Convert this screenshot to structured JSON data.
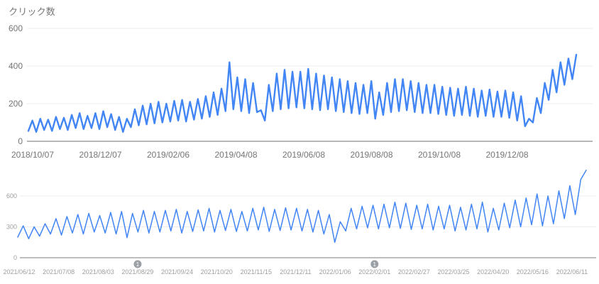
{
  "chart_data": [
    {
      "type": "line",
      "title": "クリック数",
      "line_color": "#4285f4",
      "axis_text_color": "#757575",
      "grid_color": "#ececec",
      "baseline_color": "#9e9e9e",
      "x_tick_labels": [
        "2018/10/07",
        "2018/12/07",
        "2019/02/06",
        "2019/04/08",
        "2019/06/08",
        "2019/08/08",
        "2019/10/08",
        "2019/12/08"
      ],
      "y_ticks": [
        0,
        200,
        400,
        600
      ],
      "ylim": [
        0,
        600
      ],
      "grid": "horizontal-only",
      "legend": "none",
      "values": [
        55,
        110,
        50,
        120,
        60,
        115,
        55,
        130,
        65,
        125,
        60,
        140,
        70,
        150,
        65,
        135,
        70,
        150,
        65,
        160,
        75,
        145,
        60,
        130,
        50,
        120,
        75,
        170,
        85,
        190,
        90,
        200,
        95,
        210,
        100,
        200,
        105,
        215,
        110,
        220,
        105,
        210,
        115,
        225,
        120,
        240,
        130,
        260,
        140,
        280,
        160,
        420,
        170,
        340,
        160,
        330,
        150,
        310,
        155,
        165,
        110,
        300,
        160,
        360,
        170,
        380,
        175,
        370,
        180,
        370,
        175,
        385,
        170,
        360,
        165,
        350,
        170,
        340,
        160,
        330,
        155,
        320,
        150,
        310,
        145,
        300,
        150,
        320,
        120,
        260,
        140,
        310,
        155,
        330,
        160,
        330,
        165,
        320,
        155,
        310,
        150,
        300,
        150,
        300,
        145,
        290,
        140,
        285,
        135,
        280,
        140,
        290,
        135,
        280,
        130,
        270,
        135,
        275,
        130,
        265,
        130,
        270,
        125,
        260,
        110,
        240,
        80,
        120,
        100,
        230,
        150,
        310,
        220,
        380,
        260,
        420,
        300,
        440,
        330,
        460
      ]
    },
    {
      "type": "line",
      "title": "",
      "line_color": "#4285f4",
      "axis_text_color": "#9e9e9e",
      "grid_color": "#ececec",
      "baseline_color": "#bdbdbd",
      "x_tick_labels": [
        "2021/06/12",
        "2021/07/08",
        "2021/08/03",
        "2021/08/29",
        "2021/09/24",
        "2021/10/20",
        "2021/11/15",
        "2021/12/11",
        "2022/01/06",
        "2022/02/01",
        "2022/02/27",
        "2022/03/25",
        "2022/04/20",
        "2022/05/16",
        "2022/06/11"
      ],
      "y_ticks": [
        0,
        300,
        600
      ],
      "ylim": [
        0,
        900
      ],
      "grid": "horizontal-only",
      "legend": "none",
      "annotations": [
        {
          "label": "1",
          "x_index": 3
        },
        {
          "label": "1",
          "x_index": 9
        }
      ],
      "annotation_color": "#9aa0a6",
      "values": [
        200,
        310,
        185,
        300,
        210,
        330,
        230,
        380,
        220,
        400,
        240,
        420,
        230,
        430,
        250,
        410,
        240,
        440,
        230,
        450,
        195,
        430,
        250,
        460,
        240,
        450,
        250,
        460,
        260,
        470,
        240,
        450,
        255,
        465,
        260,
        480,
        250,
        460,
        265,
        470,
        255,
        450,
        260,
        480,
        270,
        490,
        255,
        470,
        265,
        485,
        270,
        480,
        260,
        470,
        250,
        460,
        230,
        420,
        150,
        350,
        260,
        480,
        280,
        500,
        290,
        510,
        280,
        520,
        290,
        540,
        285,
        530,
        275,
        510,
        280,
        520,
        270,
        500,
        280,
        510,
        260,
        490,
        270,
        520,
        280,
        540,
        250,
        480,
        270,
        530,
        290,
        560,
        300,
        580,
        320,
        620,
        310,
        600,
        330,
        650,
        380,
        700,
        420,
        760,
        850
      ]
    }
  ]
}
